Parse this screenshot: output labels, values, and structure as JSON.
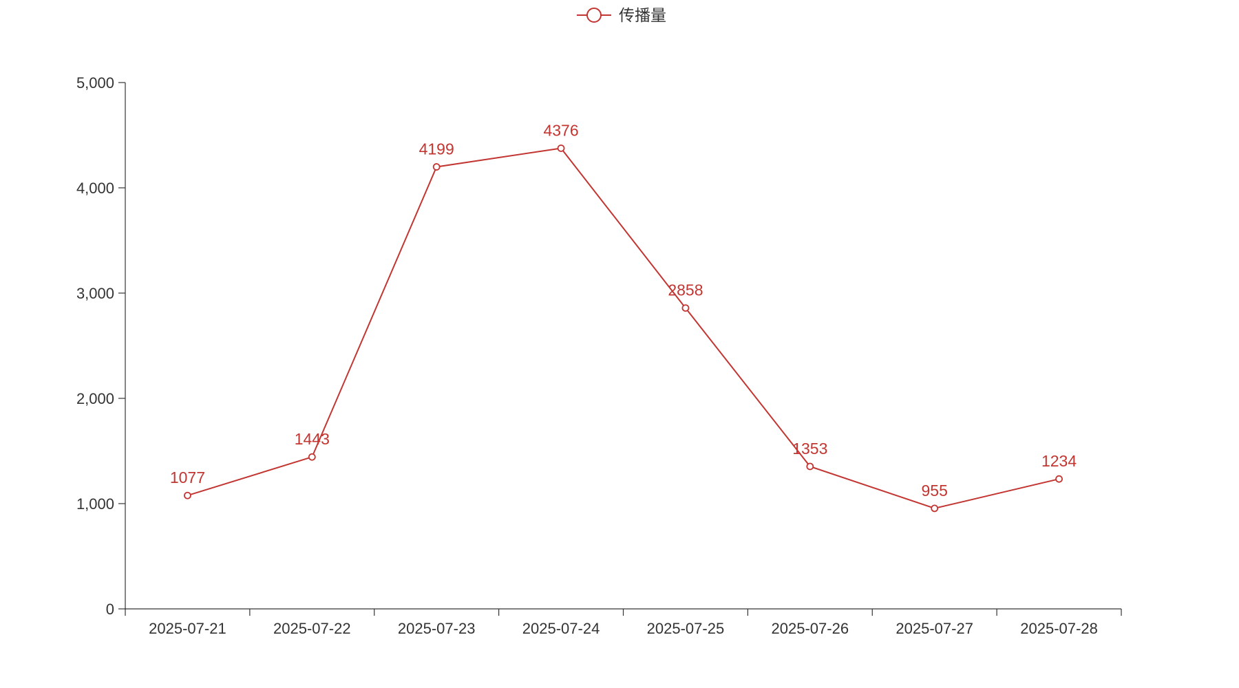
{
  "chart_data": {
    "type": "line",
    "categories": [
      "2025-07-21",
      "2025-07-22",
      "2025-07-23",
      "2025-07-24",
      "2025-07-25",
      "2025-07-26",
      "2025-07-27",
      "2025-07-28"
    ],
    "series": [
      {
        "name": "传播量",
        "values": [
          1077,
          1443,
          4199,
          4376,
          2858,
          1353,
          955,
          1234
        ],
        "color": "#c23531"
      }
    ],
    "ylim": [
      0,
      5000
    ],
    "yticks": [
      0,
      1000,
      2000,
      3000,
      4000,
      5000
    ],
    "ytick_labels": [
      "0",
      "1,000",
      "2,000",
      "3,000",
      "4,000",
      "5,000"
    ],
    "legend_position": "top-center",
    "grid": false,
    "data_labels": true,
    "marker": "empty-circle"
  }
}
